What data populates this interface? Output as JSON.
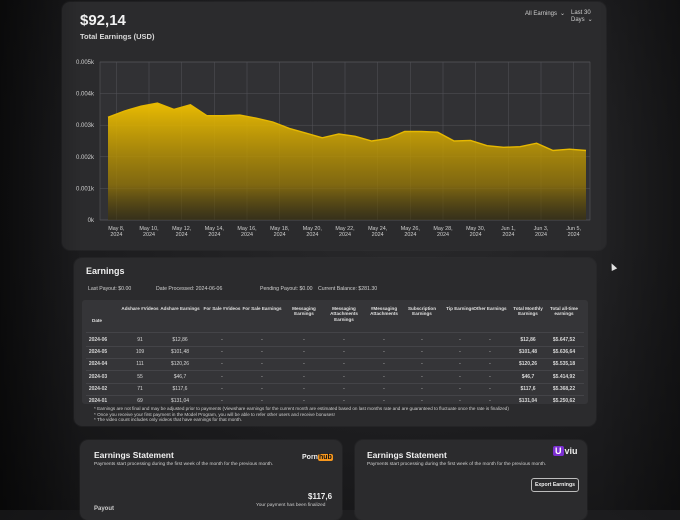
{
  "header": {
    "total_amount": "$92,14",
    "subtitle": "Total Earnings (USD)",
    "filter_earnings": "All Earnings",
    "filter_period": "Last 30 Days"
  },
  "chart_data": {
    "type": "area",
    "y_ticks": [
      "0k",
      "0.001k",
      "0.002k",
      "0.003k",
      "0.004k",
      "0.005k"
    ],
    "x_ticks": [
      [
        "May 8,",
        "2024"
      ],
      [
        "May 10,",
        "2024"
      ],
      [
        "May 12,",
        "2024"
      ],
      [
        "May 14,",
        "2024"
      ],
      [
        "May 16,",
        "2024"
      ],
      [
        "May 18,",
        "2024"
      ],
      [
        "May 20,",
        "2024"
      ],
      [
        "May 22,",
        "2024"
      ],
      [
        "May 24,",
        "2024"
      ],
      [
        "May 26,",
        "2024"
      ],
      [
        "May 28,",
        "2024"
      ],
      [
        "May 30,",
        "2024"
      ],
      [
        "Jun 1,",
        "2024"
      ],
      [
        "Jun 3,",
        "2024"
      ],
      [
        "Jun 5,",
        "2024"
      ]
    ],
    "ylim": [
      0,
      0.005
    ],
    "values": [
      0.00325,
      0.00345,
      0.0036,
      0.0037,
      0.0035,
      0.00365,
      0.0033,
      0.0033,
      0.00332,
      0.00322,
      0.0031,
      0.0029,
      0.00275,
      0.0026,
      0.00272,
      0.00265,
      0.0025,
      0.00258,
      0.0028,
      0.0028,
      0.00278,
      0.0025,
      0.00252,
      0.00235,
      0.0023,
      0.00232,
      0.00243,
      0.0022,
      0.00224,
      0.0022
    ],
    "color": "#e6b800",
    "grid": true
  },
  "earnings": {
    "title": "Earnings",
    "last_payout": "Last Payout: $0.00",
    "date_processed": "Date Processed: 2024-06-06",
    "pending_payout": "Pending Payout: $0.00",
    "current_balance": "Current Balance: $281.30",
    "columns": [
      "Date",
      "Adshare #Videos",
      "Adshare Earnings",
      "For Sale #Videos",
      "For Sale Earnings",
      "Messaging Earnings",
      "Messaging Attachments Earnings",
      "#Messaging Attachments",
      "Subscription Earnings",
      "Tip Earnings",
      "Other Earnings",
      "Total Monthly Earnings",
      "Total all-time earnings"
    ],
    "rows": [
      [
        "2024-06",
        "91",
        "$12,86",
        "-",
        "-",
        "-",
        "-",
        "-",
        "-",
        "-",
        "-",
        "$12,86",
        "$5.647,52"
      ],
      [
        "2024-05",
        "109",
        "$101,48",
        "-",
        "-",
        "-",
        "-",
        "-",
        "-",
        "-",
        "-",
        "$101,48",
        "$5.636,64"
      ],
      [
        "2024-04",
        "111",
        "$120,26",
        "-",
        "-",
        "-",
        "-",
        "-",
        "-",
        "-",
        "-",
        "$120,26",
        "$5.535,18"
      ],
      [
        "2024-03",
        "55",
        "$46,7",
        "-",
        "-",
        "-",
        "-",
        "-",
        "-",
        "-",
        "-",
        "$46,7",
        "$5.414,92"
      ],
      [
        "2024-02",
        "71",
        "$117,6",
        "-",
        "-",
        "-",
        "-",
        "-",
        "-",
        "-",
        "-",
        "$117,6",
        "$5.368,22"
      ],
      [
        "2024-01",
        "69",
        "$131,04",
        "-",
        "-",
        "-",
        "-",
        "-",
        "-",
        "-",
        "-",
        "$131,04",
        "$5.250,62"
      ]
    ],
    "notes": [
      "* Earnings are not final and may be adjusted prior to payments (Viewshare earnings for the current month are estimated based on last months rate and are guaranteed to fluctuate once the rate is finalized)",
      "* Once you receive your first payment in the Model Program, you will be able to refer other users and receive bonuses!",
      "* The video count includes only videos that have earnings for that month."
    ]
  },
  "statement_left": {
    "title": "Earnings Statement",
    "subtitle": "Payments start processing during the first week of the month for the previous month.",
    "logo_text": "Porn",
    "logo_badge": "hub",
    "amount": "$117,6",
    "payout_label": "Payout",
    "payment_note": "Your payment has been finalized"
  },
  "statement_right": {
    "title": "Earnings Statement",
    "subtitle": "Payments start processing during the first week of the month for the previous month.",
    "logo_badge": "U",
    "logo_text": "viu",
    "export_label": "Export Earnings"
  }
}
